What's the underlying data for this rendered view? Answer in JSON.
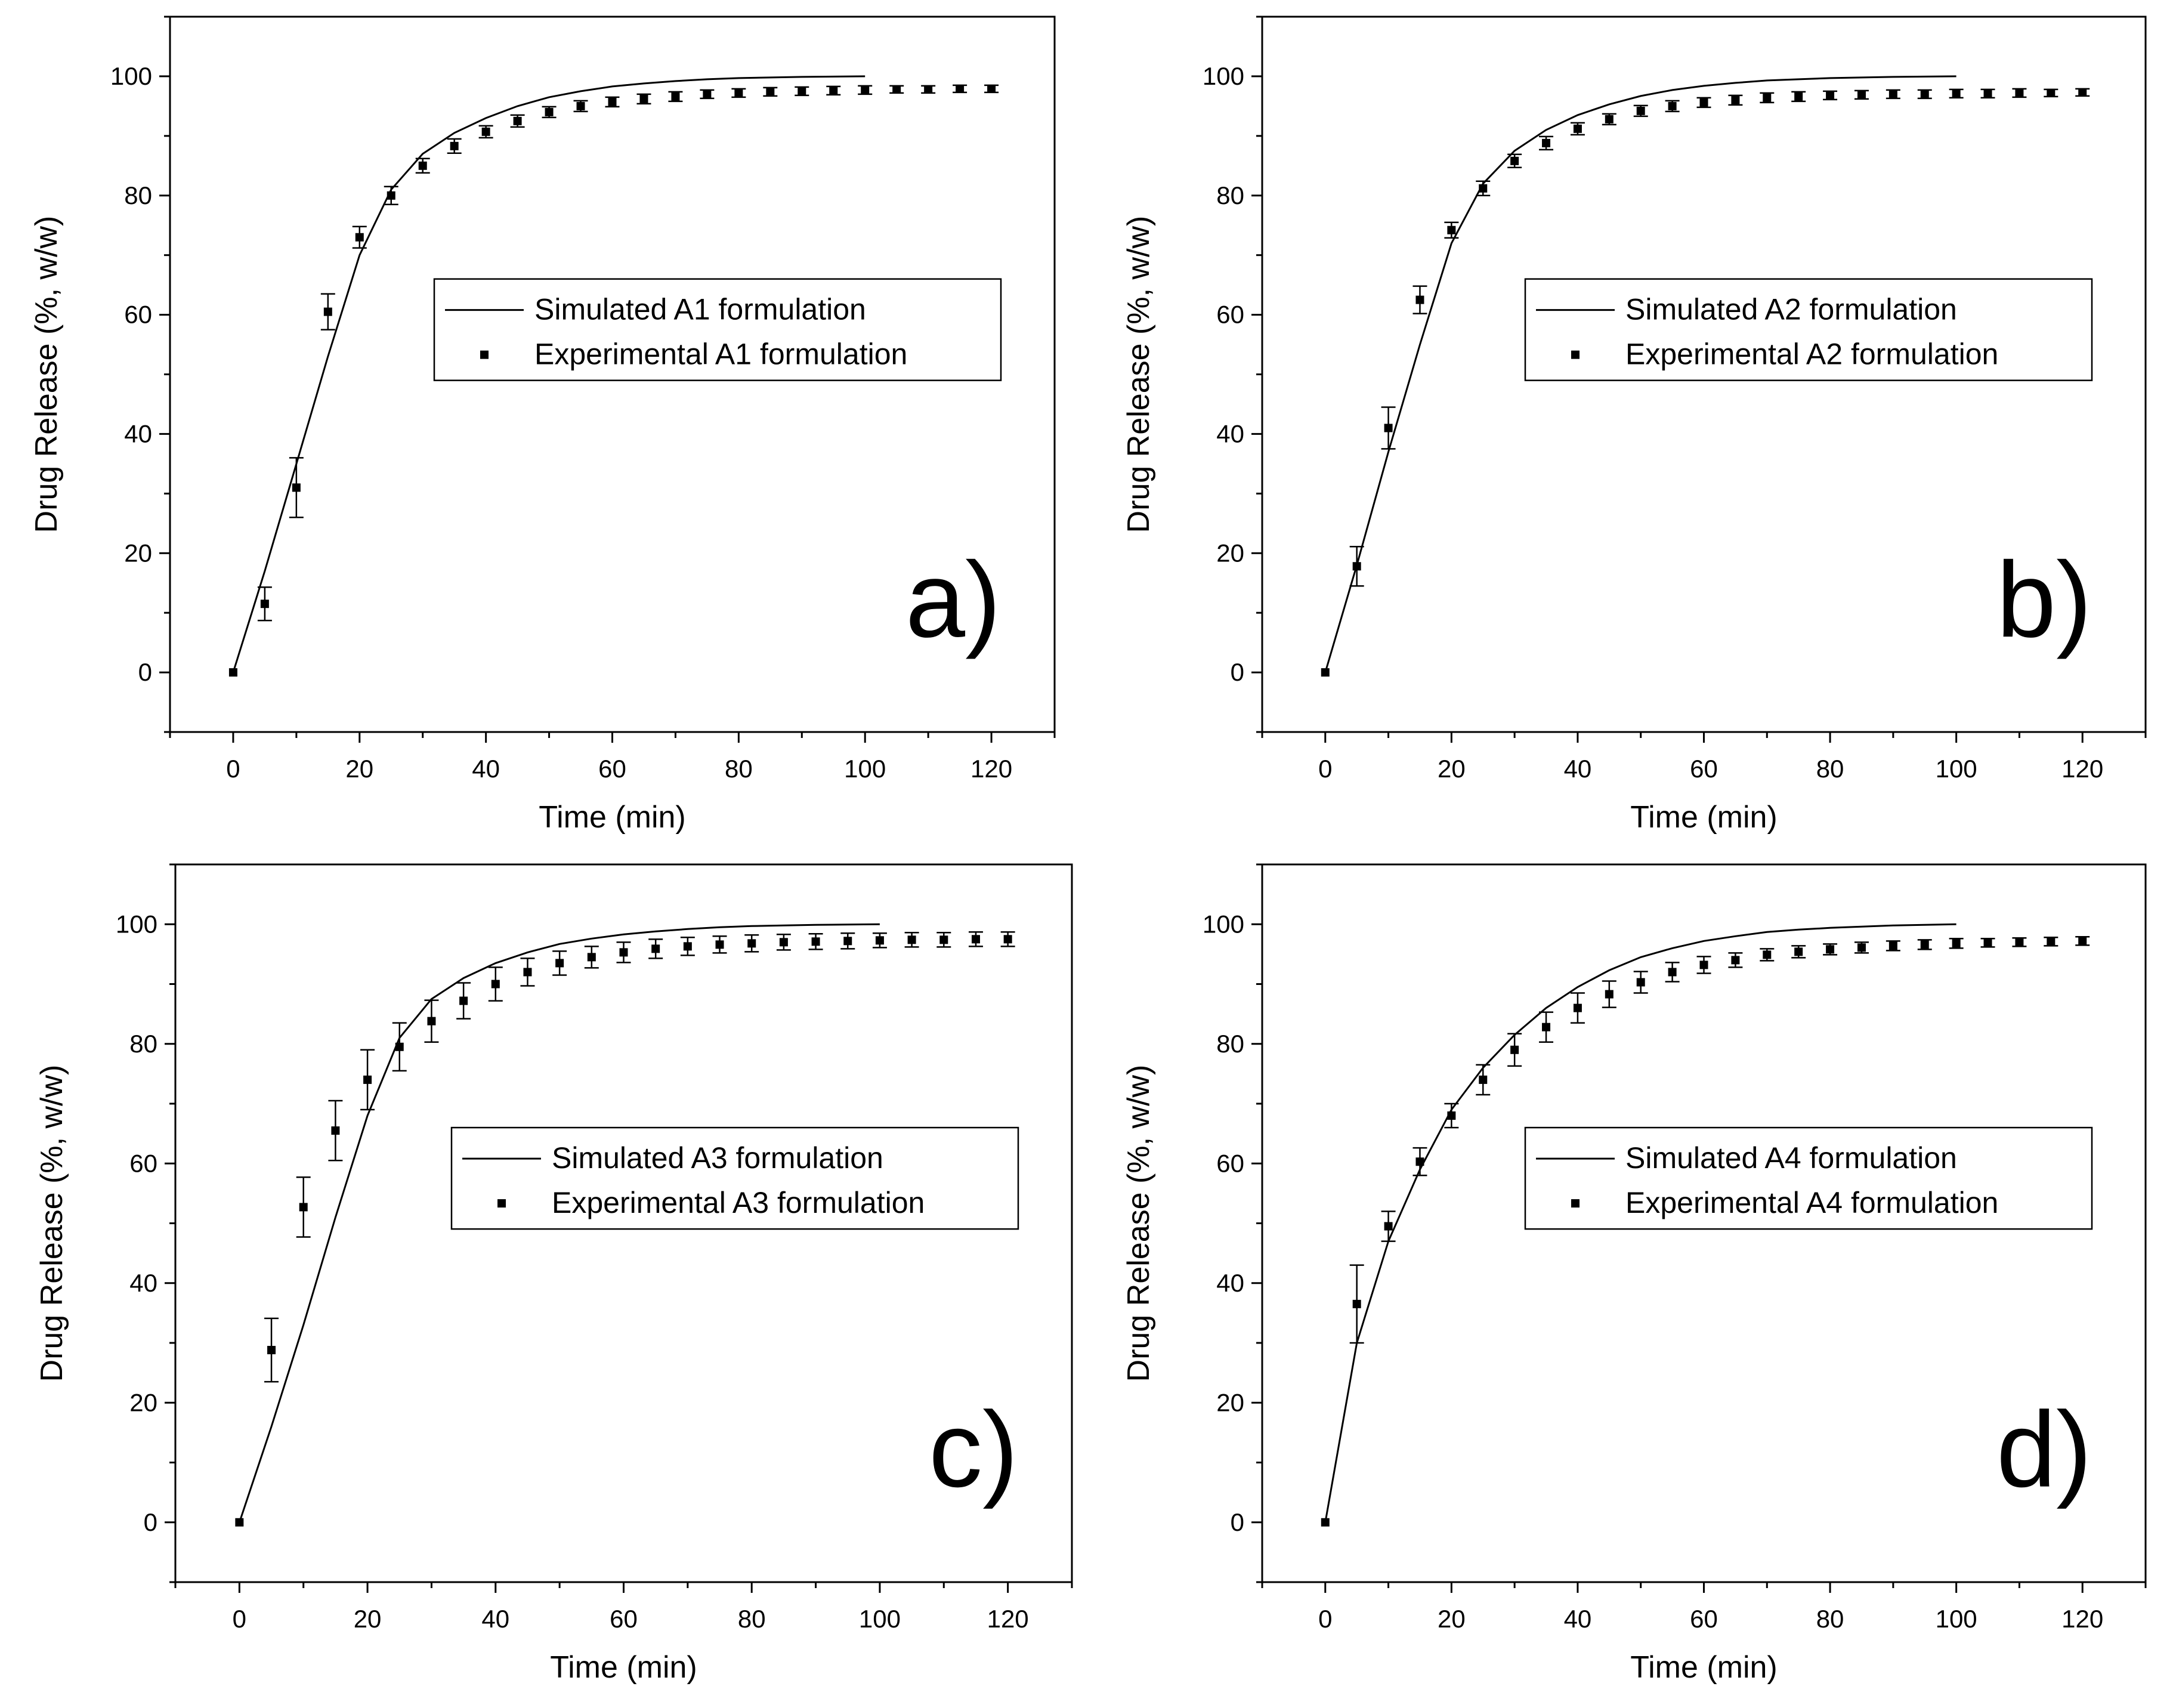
{
  "chart_data": [
    {
      "type": "line",
      "panel_label": "a)",
      "xlabel": "Time (min)",
      "ylabel": "Drug Release (%, w/w)",
      "xlim": [
        -10,
        130
      ],
      "ylim": [
        -10,
        110
      ],
      "xticks": [
        0,
        20,
        40,
        60,
        80,
        100,
        120
      ],
      "yticks": [
        0,
        20,
        40,
        60,
        80,
        100
      ],
      "legend_position": "center-right",
      "series": [
        {
          "name": "Simulated A1 formulation",
          "kind": "line",
          "x": [
            0,
            5,
            10,
            15,
            20,
            25,
            30,
            35,
            40,
            45,
            50,
            55,
            60,
            65,
            70,
            75,
            80,
            85,
            90,
            95,
            100
          ],
          "y": [
            0,
            17,
            35,
            53,
            70,
            81,
            87,
            90.5,
            93,
            95,
            96.5,
            97.5,
            98.3,
            98.8,
            99.2,
            99.5,
            99.7,
            99.8,
            99.9,
            99.95,
            100
          ]
        },
        {
          "name": "Experimental A1 formulation",
          "kind": "points",
          "x": [
            0,
            5,
            10,
            15,
            20,
            25,
            30,
            35,
            40,
            45,
            50,
            55,
            60,
            65,
            70,
            75,
            80,
            85,
            90,
            95,
            100,
            105,
            110,
            115,
            120
          ],
          "y": [
            0,
            11.5,
            31,
            60.5,
            73,
            80,
            85,
            88.3,
            90.7,
            92.5,
            94,
            95,
            95.7,
            96.2,
            96.6,
            97,
            97.2,
            97.4,
            97.5,
            97.6,
            97.7,
            97.8,
            97.8,
            97.9,
            97.9
          ],
          "err": [
            0,
            2.8,
            5,
            3,
            1.8,
            1.5,
            1.2,
            1.2,
            1.0,
            1.0,
            0.9,
            0.9,
            0.8,
            0.8,
            0.8,
            0.7,
            0.7,
            0.7,
            0.7,
            0.7,
            0.7,
            0.6,
            0.6,
            0.6,
            0.6
          ]
        }
      ]
    },
    {
      "type": "line",
      "panel_label": "b)",
      "xlabel": "Time (min)",
      "ylabel": "Drug Release (%, w/w)",
      "xlim": [
        -10,
        130
      ],
      "ylim": [
        -10,
        110
      ],
      "xticks": [
        0,
        20,
        40,
        60,
        80,
        100,
        120
      ],
      "yticks": [
        0,
        20,
        40,
        60,
        80,
        100
      ],
      "legend_position": "center-right",
      "series": [
        {
          "name": "Simulated A2 formulation",
          "kind": "line",
          "x": [
            0,
            5,
            10,
            15,
            20,
            25,
            30,
            35,
            40,
            45,
            50,
            55,
            60,
            65,
            70,
            75,
            80,
            85,
            90,
            95,
            100
          ],
          "y": [
            0,
            18,
            37,
            55,
            72,
            82,
            87.5,
            91,
            93.5,
            95.3,
            96.7,
            97.7,
            98.4,
            98.9,
            99.3,
            99.5,
            99.7,
            99.8,
            99.9,
            99.95,
            100
          ]
        },
        {
          "name": "Experimental A2 formulation",
          "kind": "points",
          "x": [
            0,
            5,
            10,
            15,
            20,
            25,
            30,
            35,
            40,
            45,
            50,
            55,
            60,
            65,
            70,
            75,
            80,
            85,
            90,
            95,
            100,
            105,
            110,
            115,
            120
          ],
          "y": [
            0,
            17.8,
            41,
            62.5,
            74.2,
            81.2,
            85.8,
            88.8,
            91.2,
            92.8,
            94.2,
            95,
            95.6,
            96,
            96.4,
            96.6,
            96.8,
            96.9,
            97,
            97,
            97.1,
            97.1,
            97.2,
            97.2,
            97.3
          ],
          "err": [
            0,
            3.3,
            3.5,
            2.3,
            1.3,
            1.2,
            1.1,
            1.1,
            1.0,
            0.9,
            0.9,
            0.9,
            0.8,
            0.8,
            0.8,
            0.8,
            0.7,
            0.7,
            0.7,
            0.7,
            0.7,
            0.7,
            0.7,
            0.6,
            0.6
          ]
        }
      ]
    },
    {
      "type": "line",
      "panel_label": "c)",
      "xlabel": "Time (min)",
      "ylabel": "Drug Release (%, w/w)",
      "xlim": [
        -10,
        130
      ],
      "ylim": [
        -10,
        110
      ],
      "xticks": [
        0,
        20,
        40,
        60,
        80,
        100,
        120
      ],
      "yticks": [
        0,
        20,
        40,
        60,
        80,
        100
      ],
      "legend_position": "center-right",
      "series": [
        {
          "name": "Simulated A3 formulation",
          "kind": "line",
          "x": [
            0,
            5,
            10,
            15,
            20,
            25,
            30,
            35,
            40,
            45,
            50,
            55,
            60,
            65,
            70,
            75,
            80,
            85,
            90,
            95,
            100
          ],
          "y": [
            0,
            16,
            33,
            51,
            68,
            81,
            87.5,
            91,
            93.5,
            95.3,
            96.7,
            97.6,
            98.3,
            98.8,
            99.2,
            99.5,
            99.7,
            99.8,
            99.9,
            99.95,
            100
          ]
        },
        {
          "name": "Experimental A3 formulation",
          "kind": "points",
          "x": [
            0,
            5,
            10,
            15,
            20,
            25,
            30,
            35,
            40,
            45,
            50,
            55,
            60,
            65,
            70,
            75,
            80,
            85,
            90,
            95,
            100,
            105,
            110,
            115,
            120
          ],
          "y": [
            0,
            28.8,
            52.7,
            65.5,
            74,
            79.5,
            83.8,
            87.2,
            90,
            92,
            93.5,
            94.5,
            95.3,
            95.9,
            96.3,
            96.6,
            96.8,
            97,
            97.1,
            97.2,
            97.3,
            97.4,
            97.4,
            97.5,
            97.5
          ],
          "err": [
            0,
            5.3,
            5,
            5,
            5,
            4,
            3.5,
            3,
            2.8,
            2.3,
            2.0,
            1.8,
            1.7,
            1.6,
            1.5,
            1.4,
            1.4,
            1.3,
            1.3,
            1.3,
            1.2,
            1.2,
            1.2,
            1.2,
            1.2
          ]
        }
      ]
    },
    {
      "type": "line",
      "panel_label": "d)",
      "xlabel": "Time (min)",
      "ylabel": "Drug Release (%, w/w)",
      "xlim": [
        -10,
        130
      ],
      "ylim": [
        -10,
        110
      ],
      "xticks": [
        0,
        20,
        40,
        60,
        80,
        100,
        120
      ],
      "yticks": [
        0,
        20,
        40,
        60,
        80,
        100
      ],
      "legend_position": "center-right",
      "series": [
        {
          "name": "Simulated A4 formulation",
          "kind": "line",
          "x": [
            0,
            5,
            10,
            15,
            20,
            25,
            30,
            35,
            40,
            45,
            50,
            55,
            60,
            65,
            70,
            75,
            80,
            85,
            90,
            95,
            100
          ],
          "y": [
            0,
            30,
            47,
            59,
            69,
            76,
            81.5,
            86,
            89.5,
            92.3,
            94.5,
            96,
            97.2,
            98,
            98.7,
            99.1,
            99.4,
            99.6,
            99.8,
            99.9,
            100
          ]
        },
        {
          "name": "Experimental A4 formulation",
          "kind": "points",
          "x": [
            0,
            5,
            10,
            15,
            20,
            25,
            30,
            35,
            40,
            45,
            50,
            55,
            60,
            65,
            70,
            75,
            80,
            85,
            90,
            95,
            100,
            105,
            110,
            115,
            120
          ],
          "y": [
            0,
            36.5,
            49.5,
            60.3,
            68,
            74,
            79,
            82.8,
            86,
            88.3,
            90.3,
            92,
            93.2,
            94,
            94.9,
            95.4,
            95.8,
            96.1,
            96.4,
            96.6,
            96.8,
            96.9,
            97,
            97.1,
            97.2
          ],
          "err": [
            0,
            6.5,
            2.5,
            2.3,
            2.0,
            2.5,
            2.7,
            2.5,
            2.5,
            2.2,
            1.8,
            1.6,
            1.4,
            1.2,
            1.0,
            1.0,
            0.9,
            0.9,
            0.8,
            0.8,
            0.8,
            0.7,
            0.7,
            0.7,
            0.7
          ]
        }
      ]
    }
  ]
}
